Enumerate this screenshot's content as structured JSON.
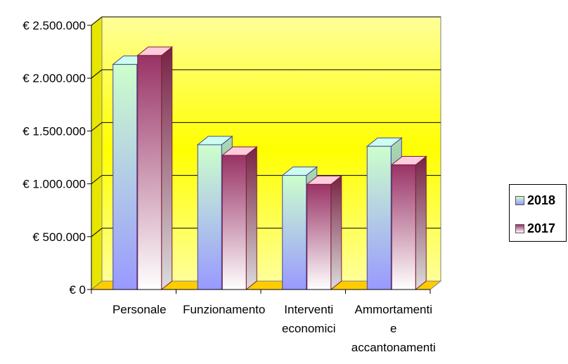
{
  "chart_data": {
    "type": "bar",
    "categories": [
      [
        "Personale"
      ],
      [
        "Funzionamento"
      ],
      [
        "Interventi",
        "economici"
      ],
      [
        "Ammortamenti",
        "e",
        "accantonamenti"
      ]
    ],
    "series": [
      {
        "name": "2018",
        "values": [
          2130000,
          1370000,
          1080000,
          1355000
        ]
      },
      {
        "name": "2017",
        "values": [
          2215000,
          1270000,
          995000,
          1180000
        ]
      }
    ],
    "ylim": [
      0,
      2500000
    ],
    "yticks": [
      0,
      500000,
      1000000,
      1500000,
      2000000,
      2500000
    ],
    "ytick_labels": [
      "€ 0",
      "€ 500.000",
      "€ 1.000.000",
      "€ 1.500.000",
      "€ 2.000.000",
      "€ 2.500.000"
    ],
    "legend_position": "right",
    "grid": true,
    "colors": {
      "plot_top": "#ffff99",
      "plot_mid": "#ffff00",
      "floor": "#ffcc00",
      "s2018_top": "#ccffcc",
      "s2018_bottom": "#9999ff",
      "s2017_top": "#993366",
      "s2017_bottom": "#ffffff"
    }
  }
}
